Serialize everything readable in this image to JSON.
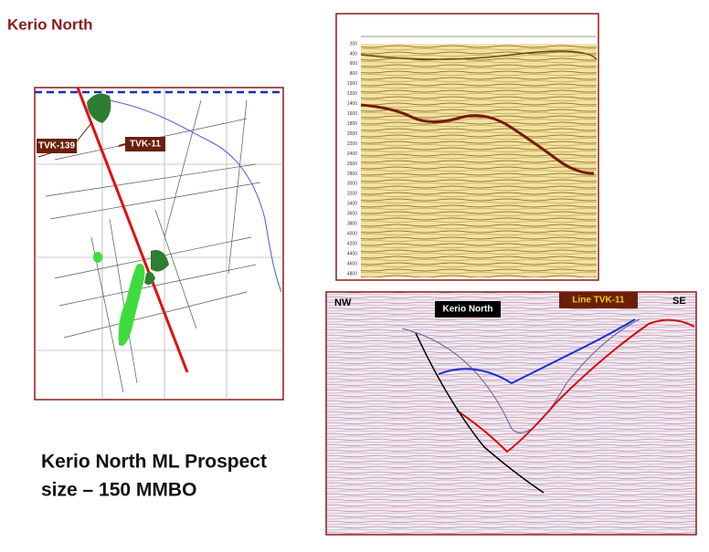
{
  "slide": {
    "title": "Kerio North",
    "map": {
      "labels": [
        "TVK-139",
        "TVK-11"
      ]
    },
    "seismic_top": {
      "depth_labels": [
        "200",
        "400",
        "600",
        "800",
        "1000",
        "1200",
        "1400",
        "1600",
        "1800",
        "2000",
        "2200",
        "2400",
        "2600",
        "2800",
        "3000",
        "3200",
        "3400",
        "3600",
        "3800",
        "4000",
        "4200",
        "4400",
        "4600",
        "4800"
      ]
    },
    "seismic_bottom": {
      "left": "NW",
      "right": "SE",
      "prospect": "Kerio North",
      "line": "Line TVK-11"
    },
    "caption": [
      "Kerio North ML Prospect",
      "size – 150 MMBO"
    ]
  }
}
